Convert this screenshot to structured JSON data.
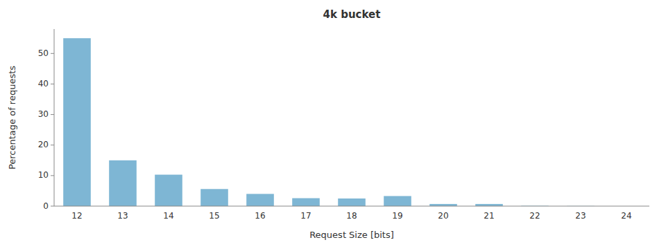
{
  "chart_data": {
    "type": "bar",
    "title": "4k bucket",
    "xlabel": "Request Size [bits]",
    "ylabel": "Percentage of requests",
    "categories": [
      12,
      13,
      14,
      15,
      16,
      17,
      18,
      19,
      20,
      21,
      22,
      23,
      24
    ],
    "values": [
      55.0,
      15.0,
      10.3,
      5.6,
      4.0,
      2.6,
      2.5,
      3.3,
      0.7,
      0.7,
      0.1,
      0.05,
      0.0
    ],
    "color": "#7eb6d4",
    "ylim": [
      0,
      58
    ],
    "yticks": [
      0,
      10,
      20,
      30,
      40,
      50
    ],
    "grid": false
  }
}
